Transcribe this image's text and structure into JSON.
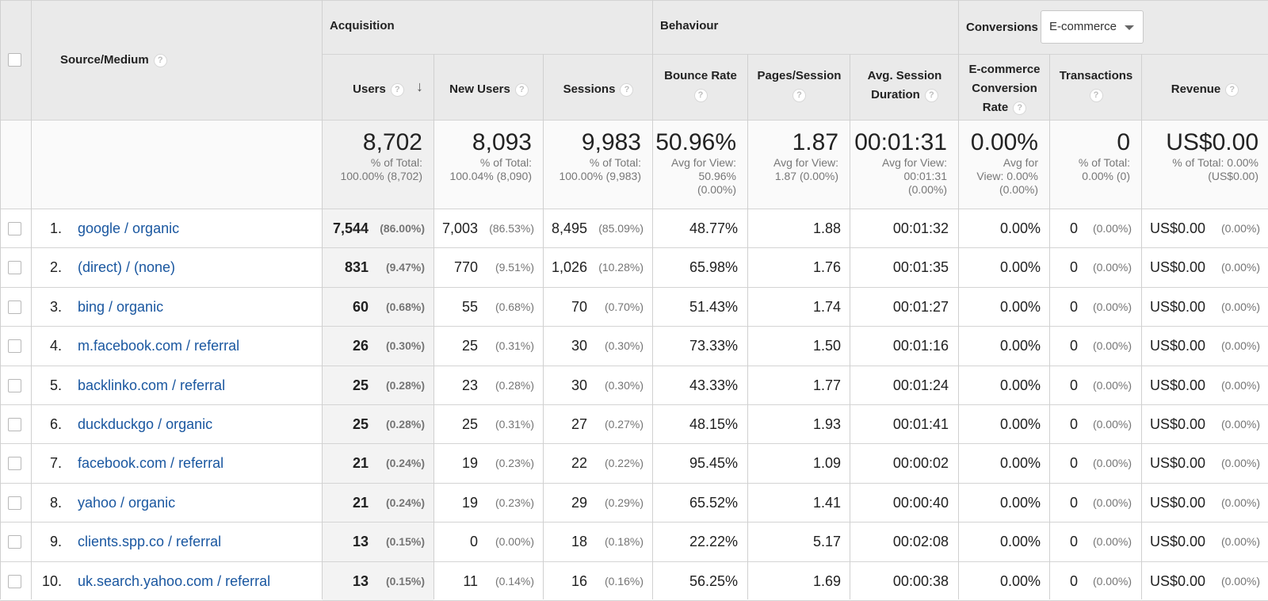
{
  "groups": {
    "source_medium": "Source/Medium",
    "acquisition": "Acquisition",
    "behaviour": "Behaviour",
    "conversions": "Conversions",
    "conversions_select": "E-commerce"
  },
  "columns": {
    "users": "Users",
    "new_users": "New Users",
    "sessions": "Sessions",
    "bounce_l1": "Bounce Rate",
    "pps_l1": "Pages/Session",
    "asd_l1": "Avg. Session",
    "asd_l2": "Duration",
    "ecr_l1": "E-commerce",
    "ecr_l2": "Conversion",
    "ecr_l3": "Rate",
    "transactions": "Transactions",
    "revenue": "Revenue"
  },
  "help_glyph": "?",
  "sort_glyph": "↓",
  "totals": {
    "users": {
      "value": "8,702",
      "l1": "% of Total:",
      "l2": "100.00% (8,702)"
    },
    "new_users": {
      "value": "8,093",
      "l1": "% of Total:",
      "l2": "100.04% (8,090)"
    },
    "sessions": {
      "value": "9,983",
      "l1": "% of Total:",
      "l2": "100.00% (9,983)"
    },
    "bounce": {
      "value": "50.96%",
      "l1": "Avg for View:",
      "l2": "50.96%",
      "l3": "(0.00%)"
    },
    "pps": {
      "value": "1.87",
      "l1": "Avg for View:",
      "l2": "1.87 (0.00%)"
    },
    "asd": {
      "value": "00:01:31",
      "l1": "Avg for View:",
      "l2": "00:01:31",
      "l3": "(0.00%)"
    },
    "ecr": {
      "value": "0.00%",
      "l1": "Avg for",
      "l2": "View: 0.00%",
      "l3": "(0.00%)"
    },
    "transactions": {
      "value": "0",
      "l1": "% of Total:",
      "l2": "0.00% (0)"
    },
    "revenue": {
      "value": "US$0.00",
      "l1": "% of Total: 0.00%",
      "l2": "(US$0.00)"
    }
  },
  "rows": [
    {
      "index": "1.",
      "source": "google / organic",
      "users": "7,544",
      "users_pct": "(86.00%)",
      "new_users": "7,003",
      "new_users_pct": "(86.53%)",
      "sessions": "8,495",
      "sessions_pct": "(85.09%)",
      "bounce": "48.77%",
      "pps": "1.88",
      "asd": "00:01:32",
      "ecr": "0.00%",
      "transactions": "0",
      "transactions_pct": "(0.00%)",
      "revenue": "US$0.00",
      "revenue_pct": "(0.00%)"
    },
    {
      "index": "2.",
      "source": "(direct) / (none)",
      "users": "831",
      "users_pct": "(9.47%)",
      "new_users": "770",
      "new_users_pct": "(9.51%)",
      "sessions": "1,026",
      "sessions_pct": "(10.28%)",
      "bounce": "65.98%",
      "pps": "1.76",
      "asd": "00:01:35",
      "ecr": "0.00%",
      "transactions": "0",
      "transactions_pct": "(0.00%)",
      "revenue": "US$0.00",
      "revenue_pct": "(0.00%)"
    },
    {
      "index": "3.",
      "source": "bing / organic",
      "users": "60",
      "users_pct": "(0.68%)",
      "new_users": "55",
      "new_users_pct": "(0.68%)",
      "sessions": "70",
      "sessions_pct": "(0.70%)",
      "bounce": "51.43%",
      "pps": "1.74",
      "asd": "00:01:27",
      "ecr": "0.00%",
      "transactions": "0",
      "transactions_pct": "(0.00%)",
      "revenue": "US$0.00",
      "revenue_pct": "(0.00%)"
    },
    {
      "index": "4.",
      "source": "m.facebook.com / referral",
      "users": "26",
      "users_pct": "(0.30%)",
      "new_users": "25",
      "new_users_pct": "(0.31%)",
      "sessions": "30",
      "sessions_pct": "(0.30%)",
      "bounce": "73.33%",
      "pps": "1.50",
      "asd": "00:01:16",
      "ecr": "0.00%",
      "transactions": "0",
      "transactions_pct": "(0.00%)",
      "revenue": "US$0.00",
      "revenue_pct": "(0.00%)"
    },
    {
      "index": "5.",
      "source": "backlinko.com / referral",
      "users": "25",
      "users_pct": "(0.28%)",
      "new_users": "23",
      "new_users_pct": "(0.28%)",
      "sessions": "30",
      "sessions_pct": "(0.30%)",
      "bounce": "43.33%",
      "pps": "1.77",
      "asd": "00:01:24",
      "ecr": "0.00%",
      "transactions": "0",
      "transactions_pct": "(0.00%)",
      "revenue": "US$0.00",
      "revenue_pct": "(0.00%)"
    },
    {
      "index": "6.",
      "source": "duckduckgo / organic",
      "users": "25",
      "users_pct": "(0.28%)",
      "new_users": "25",
      "new_users_pct": "(0.31%)",
      "sessions": "27",
      "sessions_pct": "(0.27%)",
      "bounce": "48.15%",
      "pps": "1.93",
      "asd": "00:01:41",
      "ecr": "0.00%",
      "transactions": "0",
      "transactions_pct": "(0.00%)",
      "revenue": "US$0.00",
      "revenue_pct": "(0.00%)"
    },
    {
      "index": "7.",
      "source": "facebook.com / referral",
      "users": "21",
      "users_pct": "(0.24%)",
      "new_users": "19",
      "new_users_pct": "(0.23%)",
      "sessions": "22",
      "sessions_pct": "(0.22%)",
      "bounce": "95.45%",
      "pps": "1.09",
      "asd": "00:00:02",
      "ecr": "0.00%",
      "transactions": "0",
      "transactions_pct": "(0.00%)",
      "revenue": "US$0.00",
      "revenue_pct": "(0.00%)"
    },
    {
      "index": "8.",
      "source": "yahoo / organic",
      "users": "21",
      "users_pct": "(0.24%)",
      "new_users": "19",
      "new_users_pct": "(0.23%)",
      "sessions": "29",
      "sessions_pct": "(0.29%)",
      "bounce": "65.52%",
      "pps": "1.41",
      "asd": "00:00:40",
      "ecr": "0.00%",
      "transactions": "0",
      "transactions_pct": "(0.00%)",
      "revenue": "US$0.00",
      "revenue_pct": "(0.00%)"
    },
    {
      "index": "9.",
      "source": "clients.spp.co / referral",
      "users": "13",
      "users_pct": "(0.15%)",
      "new_users": "0",
      "new_users_pct": "(0.00%)",
      "sessions": "18",
      "sessions_pct": "(0.18%)",
      "bounce": "22.22%",
      "pps": "5.17",
      "asd": "00:02:08",
      "ecr": "0.00%",
      "transactions": "0",
      "transactions_pct": "(0.00%)",
      "revenue": "US$0.00",
      "revenue_pct": "(0.00%)"
    },
    {
      "index": "10.",
      "source": "uk.search.yahoo.com / referral",
      "users": "13",
      "users_pct": "(0.15%)",
      "new_users": "11",
      "new_users_pct": "(0.14%)",
      "sessions": "16",
      "sessions_pct": "(0.16%)",
      "bounce": "56.25%",
      "pps": "1.69",
      "asd": "00:00:38",
      "ecr": "0.00%",
      "transactions": "0",
      "transactions_pct": "(0.00%)",
      "revenue": "US$0.00",
      "revenue_pct": "(0.00%)"
    }
  ]
}
